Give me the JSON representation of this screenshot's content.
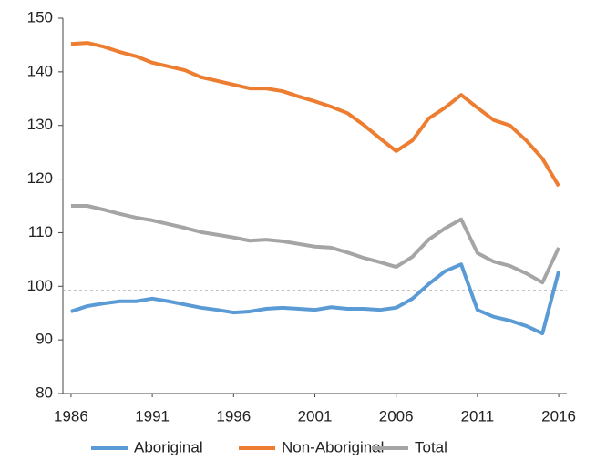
{
  "chart_data": {
    "type": "line",
    "x": [
      1986,
      1987,
      1988,
      1989,
      1990,
      1991,
      1992,
      1993,
      1994,
      1995,
      1996,
      1997,
      1998,
      1999,
      2000,
      2001,
      2002,
      2003,
      2004,
      2005,
      2006,
      2007,
      2008,
      2009,
      2010,
      2011,
      2012,
      2013,
      2014,
      2015,
      2016
    ],
    "series": [
      {
        "name": "Aboriginal",
        "color": "#5b9bd5",
        "values": [
          95.3,
          96.3,
          96.8,
          97.2,
          97.2,
          97.7,
          97.2,
          96.6,
          96.0,
          95.6,
          95.1,
          95.3,
          95.8,
          96.0,
          95.8,
          95.6,
          96.1,
          95.8,
          95.8,
          95.6,
          96.0,
          97.7,
          100.4,
          102.8,
          104.1,
          95.6,
          94.3,
          93.6,
          92.6,
          91.2,
          102.8
        ]
      },
      {
        "name": "Non-Aboriginal",
        "color": "#ed7d31",
        "values": [
          145.2,
          145.4,
          144.7,
          143.7,
          142.9,
          141.7,
          141.0,
          140.3,
          139.0,
          138.3,
          137.6,
          136.9,
          136.9,
          136.4,
          135.4,
          134.5,
          133.5,
          132.3,
          130.1,
          127.6,
          125.2,
          127.2,
          131.3,
          133.3,
          135.7,
          133.3,
          131.0,
          130.0,
          127.2,
          123.8,
          118.7
        ]
      },
      {
        "name": "Total",
        "color": "#a5a5a5",
        "values": [
          115.0,
          115.0,
          114.3,
          113.5,
          112.8,
          112.3,
          111.6,
          110.9,
          110.1,
          109.6,
          109.1,
          108.5,
          108.7,
          108.4,
          107.9,
          107.4,
          107.2,
          106.3,
          105.3,
          104.5,
          103.6,
          105.5,
          108.7,
          110.8,
          112.5,
          106.2,
          104.6,
          103.8,
          102.4,
          100.7,
          107.2
        ]
      }
    ],
    "reference_line": 99.2,
    "xlim": [
      1985.5,
      2016.5
    ],
    "xticks": [
      1986,
      1991,
      1996,
      2001,
      2006,
      2011,
      2016
    ],
    "ylim": [
      80,
      150
    ],
    "yticks": [
      80,
      90,
      100,
      110,
      120,
      130,
      140,
      150
    ],
    "legend": "bottom"
  }
}
